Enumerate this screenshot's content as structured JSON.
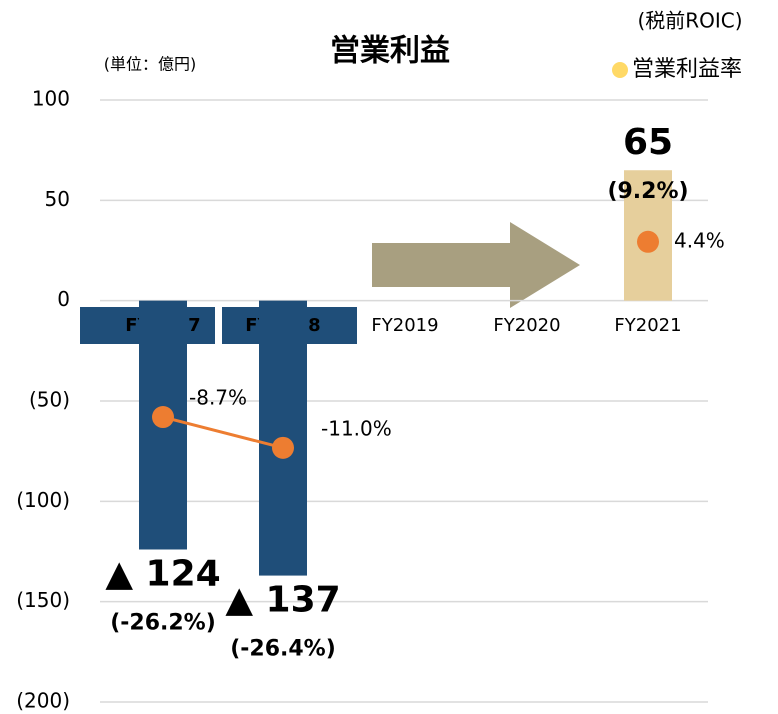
{
  "chart_data": {
    "type": "bar",
    "title": "営業利益",
    "subtitle": "(単位：億円)",
    "roic_label": "(税前ROIC)",
    "categories": [
      "FY2017",
      "FY2018",
      "FY2019",
      "FY2020",
      "FY2021"
    ],
    "series": [
      {
        "name": "営業利益",
        "type": "bar",
        "colors": [
          "#1f4e79",
          "#1f4e79",
          null,
          null,
          "#e6cf9c"
        ],
        "values": [
          -124,
          -137,
          null,
          null,
          65
        ],
        "value_labels": [
          "▲ 124",
          "▲ 137",
          null,
          null,
          "65"
        ],
        "roic": [
          -26.2,
          -26.4,
          null,
          null,
          9.2
        ],
        "roic_labels": [
          "(-26.2%)",
          "(-26.4%)",
          null,
          null,
          "(9.2%)"
        ]
      },
      {
        "name": "営業利益率",
        "type": "line",
        "axis": "y2",
        "color": "#ed7d31",
        "legend_color": "#ffd966",
        "values": [
          -8.7,
          -11.0,
          null,
          null,
          4.4
        ],
        "value_labels": [
          "-8.7%",
          "-11.0%",
          null,
          null,
          "4.4%"
        ]
      }
    ],
    "ylim": [
      -200,
      100
    ],
    "yticks": [
      {
        "value": -200,
        "label": "(200)"
      },
      {
        "value": -150,
        "label": "(150)"
      },
      {
        "value": -100,
        "label": "(100)"
      },
      {
        "value": -50,
        "label": "(50)"
      },
      0,
      50,
      100
    ],
    "y2lim": [
      -30,
      15
    ],
    "grid": true
  }
}
